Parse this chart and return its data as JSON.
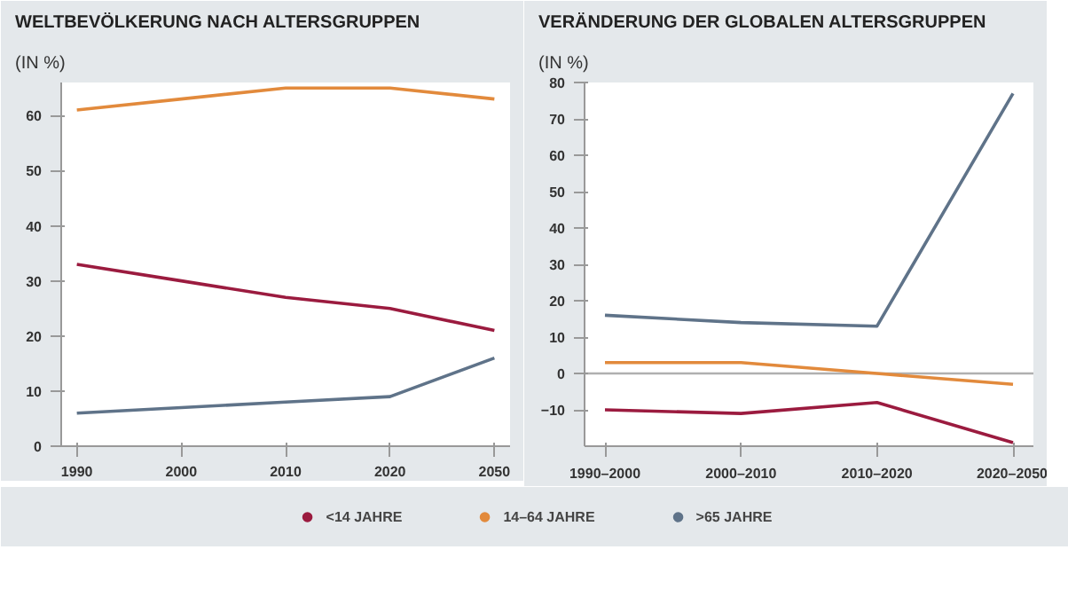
{
  "chart_data": [
    {
      "type": "line",
      "title": "WELTBEVÖLKERUNG NACH ALTERSGRUPPEN",
      "subtitle": "(IN %)",
      "categories": [
        "1990",
        "2000",
        "2010",
        "2020",
        "2050"
      ],
      "series": [
        {
          "name": "<14 JAHRE",
          "color": "#9b1b3f",
          "values": [
            33,
            30,
            27,
            25,
            21
          ]
        },
        {
          "name": "14–64 JAHRE",
          "color": "#e28a3c",
          "values": [
            61,
            63,
            65,
            65,
            63
          ]
        },
        {
          "name": ">65 JAHRE",
          "color": "#5f7389",
          "values": [
            6,
            7,
            8,
            9,
            16
          ]
        }
      ],
      "ylim": [
        0,
        66
      ],
      "yticks": [
        0,
        10,
        20,
        30,
        40,
        50,
        60
      ],
      "grid": false,
      "legend": "bottom",
      "marker": "none",
      "line_style": "solid"
    },
    {
      "type": "line",
      "title": "VERÄNDERUNG DER GLOBALEN ALTERSGRUPPEN",
      "subtitle": "(IN %)",
      "categories": [
        "1990–2000",
        "2000–2010",
        "2010–2020",
        "2020–2050"
      ],
      "series": [
        {
          "color": "#9b1b3f",
          "values": [
            -10,
            -11,
            -8,
            -19
          ]
        },
        {
          "color": "#e28a3c",
          "values": [
            3,
            3,
            0,
            -3
          ]
        },
        {
          "color": "#5f7389",
          "values": [
            16,
            14,
            13,
            77
          ]
        }
      ],
      "ylim": [
        -20,
        80
      ],
      "yticks": [
        -10,
        0,
        10,
        20,
        30,
        40,
        50,
        60,
        70,
        80
      ],
      "grid": false,
      "legend": false,
      "marker": "none",
      "line_style": "solid",
      "ref_lines": [
        {
          "axis": "y",
          "value": 0,
          "color": "#b0b0b0"
        }
      ]
    }
  ]
}
